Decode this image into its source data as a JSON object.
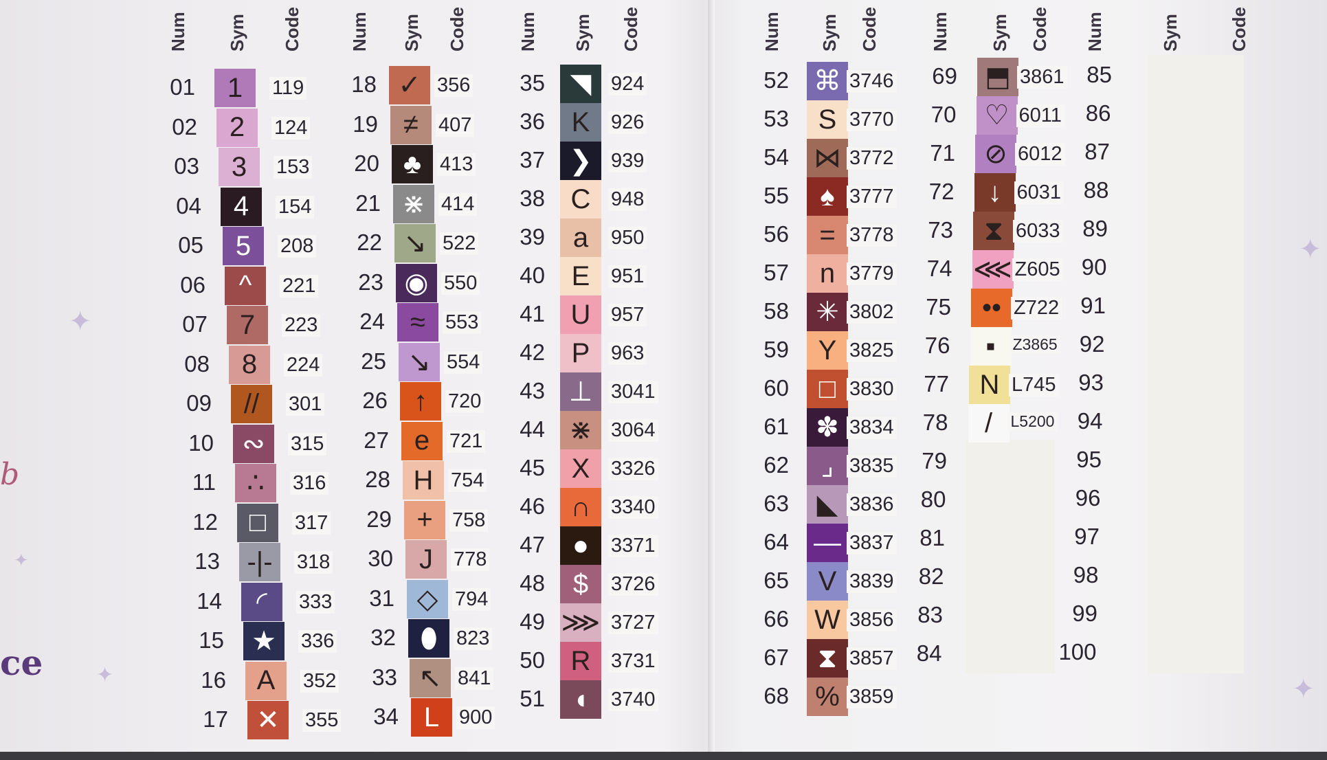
{
  "headers": {
    "number": "Num",
    "symbol": "Sym",
    "code": "Code"
  },
  "side_text": {
    "fragment_top": "b",
    "fragment_bottom": "ce"
  },
  "groups": [
    {
      "rows": [
        {
          "num": "01",
          "sym": "1",
          "code": "119",
          "color": "#b07ab8",
          "light": false
        },
        {
          "num": "02",
          "sym": "2",
          "code": "124",
          "color": "#d9a7cf",
          "light": false
        },
        {
          "num": "03",
          "sym": "3",
          "code": "153",
          "color": "#dcb0d2",
          "light": false
        },
        {
          "num": "04",
          "sym": "4",
          "code": "154",
          "color": "#2a1a22",
          "light": true
        },
        {
          "num": "05",
          "sym": "5",
          "code": "208",
          "color": "#7c4f9a",
          "light": true
        },
        {
          "num": "06",
          "sym": "^",
          "code": "221",
          "color": "#9c4a4a",
          "light": true
        },
        {
          "num": "07",
          "sym": "7",
          "code": "223",
          "color": "#b06a66",
          "light": false
        },
        {
          "num": "08",
          "sym": "8",
          "code": "224",
          "color": "#d79a94",
          "light": false
        },
        {
          "num": "09",
          "sym": "//",
          "code": "301",
          "color": "#b0561f",
          "light": false
        },
        {
          "num": "10",
          "sym": "∾",
          "code": "315",
          "color": "#8a4a66",
          "light": true
        },
        {
          "num": "11",
          "sym": "∴",
          "code": "316",
          "color": "#b77a92",
          "light": false
        },
        {
          "num": "12",
          "sym": "□",
          "code": "317",
          "color": "#5a5a66",
          "light": true
        },
        {
          "num": "13",
          "sym": "-|-",
          "code": "318",
          "color": "#9a9aa6",
          "light": false
        },
        {
          "num": "14",
          "sym": "◜",
          "code": "333",
          "color": "#5a4a86",
          "light": true
        },
        {
          "num": "15",
          "sym": "★",
          "code": "336",
          "color": "#2a2f52",
          "light": true
        },
        {
          "num": "16",
          "sym": "A",
          "code": "352",
          "color": "#e3a08a",
          "light": false
        },
        {
          "num": "17",
          "sym": "✕",
          "code": "355",
          "color": "#c0503a",
          "light": true
        }
      ]
    },
    {
      "rows": [
        {
          "num": "18",
          "sym": "✓",
          "code": "356",
          "color": "#c06a52",
          "light": false
        },
        {
          "num": "19",
          "sym": "≠",
          "code": "407",
          "color": "#b58a7a",
          "light": false
        },
        {
          "num": "20",
          "sym": "♣",
          "code": "413",
          "color": "#2a1f1f",
          "light": true
        },
        {
          "num": "21",
          "sym": "⋇",
          "code": "414",
          "color": "#8a8a8a",
          "light": true
        },
        {
          "num": "22",
          "sym": "↘",
          "code": "522",
          "color": "#a0a88a",
          "light": false
        },
        {
          "num": "23",
          "sym": "◉",
          "code": "550",
          "color": "#4a2a5a",
          "light": true
        },
        {
          "num": "24",
          "sym": "≈",
          "code": "553",
          "color": "#8a4aa0",
          "light": false
        },
        {
          "num": "25",
          "sym": "↘",
          "code": "554",
          "color": "#c098d0",
          "light": false
        },
        {
          "num": "26",
          "sym": "↑",
          "code": "720",
          "color": "#d8541a",
          "light": false
        },
        {
          "num": "27",
          "sym": "e",
          "code": "721",
          "color": "#e46a2a",
          "light": false
        },
        {
          "num": "28",
          "sym": "H",
          "code": "754",
          "color": "#f0c0a8",
          "light": false
        },
        {
          "num": "29",
          "sym": "+",
          "code": "758",
          "color": "#e8a080",
          "light": false
        },
        {
          "num": "30",
          "sym": "J",
          "code": "778",
          "color": "#d8a8a8",
          "light": false
        },
        {
          "num": "31",
          "sym": "◇",
          "code": "794",
          "color": "#a0b8d8",
          "light": false
        },
        {
          "num": "32",
          "sym": "⬮",
          "code": "823",
          "color": "#1e2240",
          "light": true
        },
        {
          "num": "33",
          "sym": "↖",
          "code": "841",
          "color": "#b09080",
          "light": false
        },
        {
          "num": "34",
          "sym": "L",
          "code": "900",
          "color": "#d0401a",
          "light": true
        }
      ]
    },
    {
      "rows": [
        {
          "num": "35",
          "sym": "◥",
          "code": "924",
          "color": "#2a3a3a",
          "light": true
        },
        {
          "num": "36",
          "sym": "K",
          "code": "926",
          "color": "#707a88",
          "light": false
        },
        {
          "num": "37",
          "sym": "❯",
          "code": "939",
          "color": "#1a1a2a",
          "light": true
        },
        {
          "num": "38",
          "sym": "C",
          "code": "948",
          "color": "#f8dcc8",
          "light": false
        },
        {
          "num": "39",
          "sym": "a",
          "code": "950",
          "color": "#e8c0a8",
          "light": false
        },
        {
          "num": "40",
          "sym": "E",
          "code": "951",
          "color": "#f8e0c8",
          "light": false
        },
        {
          "num": "41",
          "sym": "U",
          "code": "957",
          "color": "#f0a0b0",
          "light": false
        },
        {
          "num": "42",
          "sym": "P",
          "code": "963",
          "color": "#f0c0c8",
          "light": false
        },
        {
          "num": "43",
          "sym": "⊥",
          "code": "3041",
          "color": "#8a6a8a",
          "light": true
        },
        {
          "num": "44",
          "sym": "⋇",
          "code": "3064",
          "color": "#c89080",
          "light": false
        },
        {
          "num": "45",
          "sym": "X",
          "code": "3326",
          "color": "#f0a0a8",
          "light": false
        },
        {
          "num": "46",
          "sym": "∩",
          "code": "3340",
          "color": "#e86a3a",
          "light": false
        },
        {
          "num": "47",
          "sym": "●",
          "code": "3371",
          "color": "#2a1a10",
          "light": true
        },
        {
          "num": "48",
          "sym": "$",
          "code": "3726",
          "color": "#a0607a",
          "light": true
        },
        {
          "num": "49",
          "sym": "⋙",
          "code": "3727",
          "color": "#d8b0c0",
          "light": false
        },
        {
          "num": "50",
          "sym": "R",
          "code": "3731",
          "color": "#d06080",
          "light": false
        },
        {
          "num": "51",
          "sym": "◖",
          "code": "3740",
          "color": "#7a4a5a",
          "light": true
        }
      ]
    },
    {
      "rows": [
        {
          "num": "52",
          "sym": "⌘",
          "code": "3746",
          "color": "#7a6ab0",
          "light": true
        },
        {
          "num": "53",
          "sym": "S",
          "code": "3770",
          "color": "#f8e0c8",
          "light": false
        },
        {
          "num": "54",
          "sym": "⋈",
          "code": "3772",
          "color": "#a06a58",
          "light": false
        },
        {
          "num": "55",
          "sym": "♠",
          "code": "3777",
          "color": "#8a2a22",
          "light": true
        },
        {
          "num": "56",
          "sym": "=",
          "code": "3778",
          "color": "#d88870",
          "light": false
        },
        {
          "num": "57",
          "sym": "n",
          "code": "3779",
          "color": "#f0b0a0",
          "light": false
        },
        {
          "num": "58",
          "sym": "✳",
          "code": "3802",
          "color": "#6a2a3a",
          "light": true
        },
        {
          "num": "59",
          "sym": "Y",
          "code": "3825",
          "color": "#f8b080",
          "light": false
        },
        {
          "num": "60",
          "sym": "□",
          "code": "3830",
          "color": "#c05030",
          "light": true
        },
        {
          "num": "61",
          "sym": "✽",
          "code": "3834",
          "color": "#3a1a3a",
          "light": true
        },
        {
          "num": "62",
          "sym": "⌟",
          "code": "3835",
          "color": "#8a5a8a",
          "light": true
        },
        {
          "num": "63",
          "sym": "◣",
          "code": "3836",
          "color": "#b898b8",
          "light": false
        },
        {
          "num": "64",
          "sym": "—",
          "code": "3837",
          "color": "#6a2a8a",
          "light": true
        },
        {
          "num": "65",
          "sym": "V",
          "code": "3839",
          "color": "#8a8ac8",
          "light": false
        },
        {
          "num": "66",
          "sym": "W",
          "code": "3856",
          "color": "#f8c8a0",
          "light": false
        },
        {
          "num": "67",
          "sym": "⧗",
          "code": "3857",
          "color": "#6a2a2a",
          "light": true
        },
        {
          "num": "68",
          "sym": "%",
          "code": "3859",
          "color": "#c08070",
          "light": false
        }
      ]
    },
    {
      "rows": [
        {
          "num": "69",
          "sym": "⬒",
          "code": "3861",
          "color": "#a07a7a",
          "light": false
        },
        {
          "num": "70",
          "sym": "♡",
          "code": "6011",
          "color": "#c090c8",
          "light": false
        },
        {
          "num": "71",
          "sym": "⊘",
          "code": "6012",
          "color": "#b080c0",
          "light": false
        },
        {
          "num": "72",
          "sym": "↓",
          "code": "6031",
          "color": "#7a3a2a",
          "light": true
        },
        {
          "num": "73",
          "sym": "⧗",
          "code": "6033",
          "color": "#8a4a3a",
          "light": false
        },
        {
          "num": "74",
          "sym": "⋘",
          "code": "Z605",
          "color": "#f0a0c0",
          "light": false
        },
        {
          "num": "75",
          "sym": "••",
          "code": "Z722",
          "color": "#e86a2a",
          "light": false
        },
        {
          "num": "76",
          "sym": "▪",
          "code": "Z3865",
          "color": "#f8f8f0",
          "light": false
        },
        {
          "num": "77",
          "sym": "N",
          "code": "L745",
          "color": "#f0e098",
          "light": false
        },
        {
          "num": "78",
          "sym": "/",
          "code": "L5200",
          "color": "#f8f8f8",
          "light": false
        },
        {
          "num": "79",
          "sym": "",
          "code": "",
          "color": "",
          "light": false
        },
        {
          "num": "80",
          "sym": "",
          "code": "",
          "color": "",
          "light": false
        },
        {
          "num": "81",
          "sym": "",
          "code": "",
          "color": "",
          "light": false
        },
        {
          "num": "82",
          "sym": "",
          "code": "",
          "color": "",
          "light": false
        },
        {
          "num": "83",
          "sym": "",
          "code": "",
          "color": "",
          "light": false
        },
        {
          "num": "84",
          "sym": "",
          "code": "",
          "color": "",
          "light": false
        }
      ]
    },
    {
      "rows": [
        {
          "num": "85"
        },
        {
          "num": "86"
        },
        {
          "num": "87"
        },
        {
          "num": "88"
        },
        {
          "num": "89"
        },
        {
          "num": "90"
        },
        {
          "num": "91"
        },
        {
          "num": "92"
        },
        {
          "num": "93"
        },
        {
          "num": "94"
        },
        {
          "num": "95"
        },
        {
          "num": "96"
        },
        {
          "num": "97"
        },
        {
          "num": "98"
        },
        {
          "num": "99"
        },
        {
          "num": "100"
        }
      ]
    }
  ]
}
